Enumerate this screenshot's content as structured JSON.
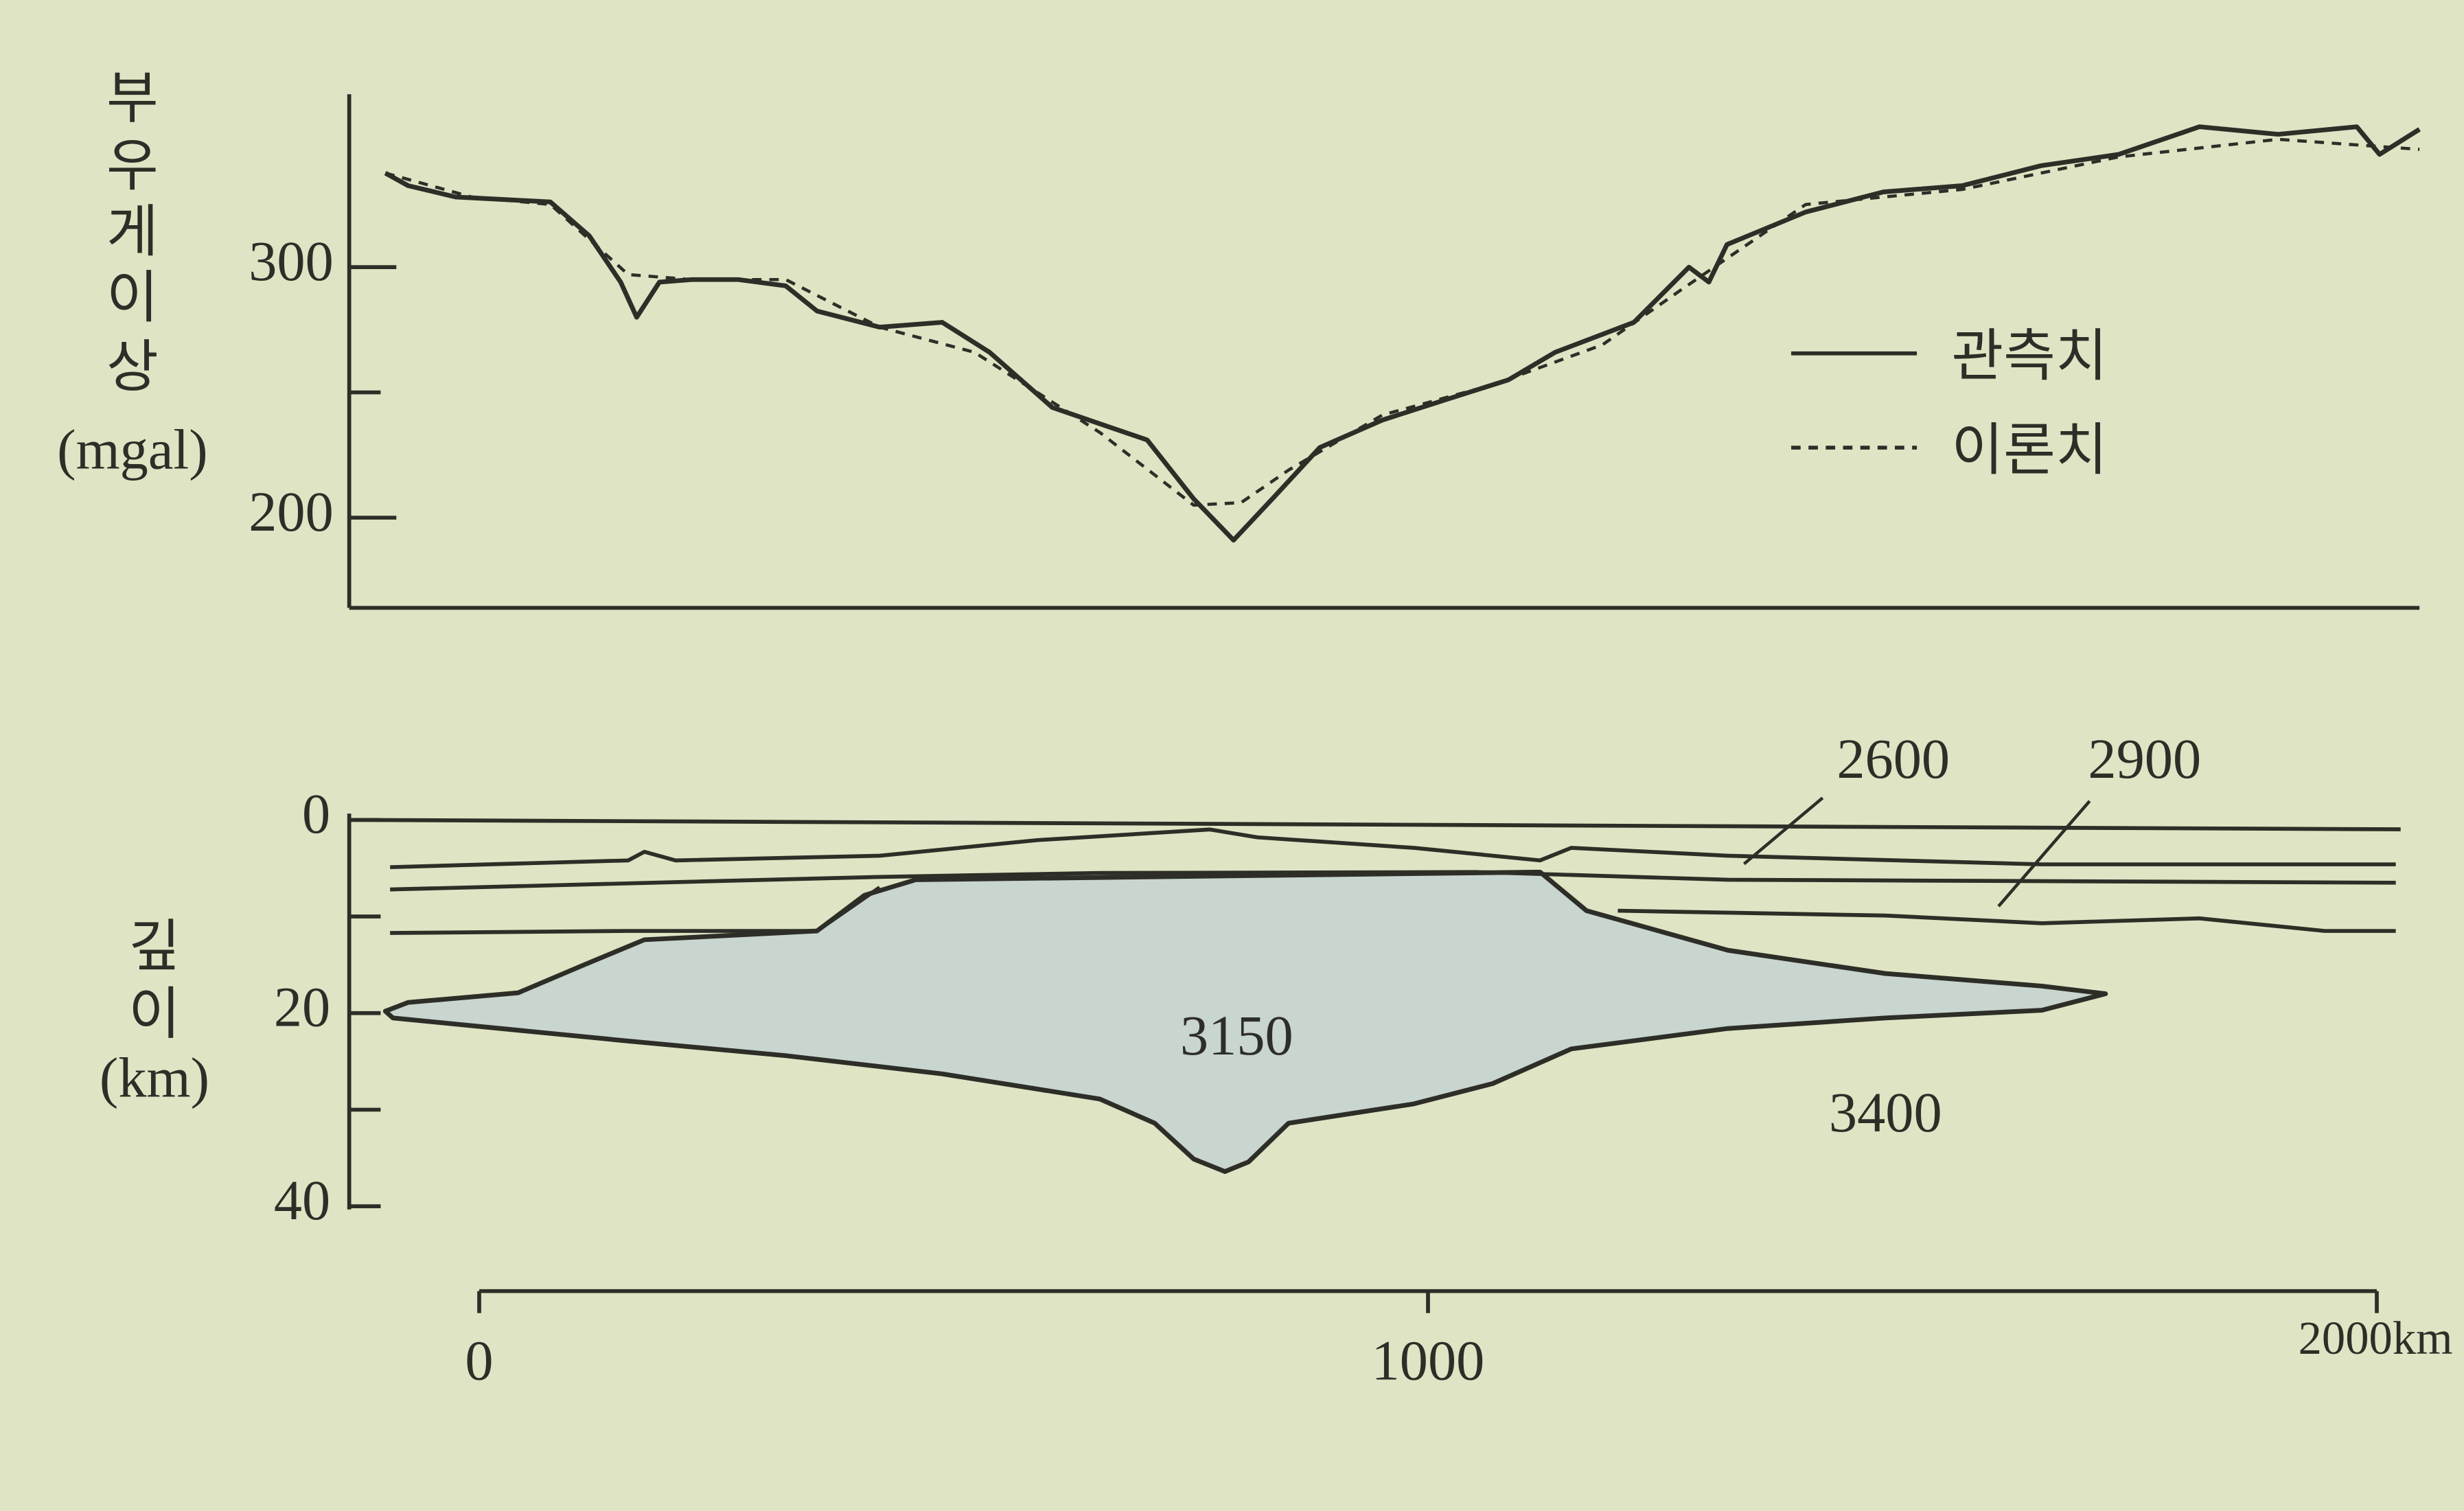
{
  "chart_data": [
    {
      "type": "line",
      "ylabel": [
        "부",
        "우",
        "게",
        "이",
        "상",
        "(mgal)"
      ],
      "xlim": [
        -137,
        2045
      ],
      "ylim": [
        164,
        369
      ],
      "yticks": [
        200,
        300
      ],
      "yminor_ticks": [
        250
      ],
      "legend": "right",
      "series": [
        {
          "name": "관측치",
          "color": "#2e2e28",
          "dash": "solid",
          "x": [
            -99,
            -75,
            -25,
            25,
            75,
            116,
            149,
            166,
            190,
            224,
            273,
            323,
            356,
            422,
            488,
            538,
            604,
            654,
            704,
            753,
            795,
            836,
            886,
            952,
            1018,
            1085,
            1134,
            1217,
            1275,
            1296,
            1315,
            1398,
            1480,
            1563,
            1646,
            1728,
            1813,
            1896,
            1979,
            2003,
            2045
          ],
          "values": [
            337.5,
            332.5,
            328,
            327,
            326,
            312.5,
            294,
            280,
            294,
            295,
            295,
            292.5,
            282.5,
            276,
            278,
            266,
            244,
            237.5,
            231,
            207.5,
            191,
            207.5,
            228,
            239,
            247,
            255,
            266,
            278,
            300,
            294,
            309,
            322,
            330,
            332.5,
            340.5,
            345,
            356,
            353,
            356,
            345,
            355
          ]
        },
        {
          "name": "이론치",
          "color": "#2e2e28",
          "dash": "dashed",
          "x": [
            -99,
            -8,
            75,
            157,
            224,
            323,
            422,
            522,
            654,
            753,
            803,
            853,
            952,
            1068,
            1184,
            1267,
            1398,
            1563,
            1728,
            1896,
            2045
          ],
          "values": [
            337.5,
            328,
            325,
            297,
            295,
            295,
            276,
            266,
            234,
            205,
            206,
            219,
            241,
            253,
            269,
            291,
            325,
            331,
            344,
            351,
            347
          ]
        }
      ]
    },
    {
      "type": "cross-section",
      "ylabel": [
        "깊",
        "이",
        "(km)"
      ],
      "xlim": [
        -137,
        2045
      ],
      "ylim": [
        0,
        40
      ],
      "y_inverted": true,
      "yticks": [
        0,
        20,
        40
      ],
      "yminor_ticks": [
        10,
        30
      ],
      "xticks": [
        0,
        1000,
        {
          "value": 2000,
          "label": "2000km"
        }
      ],
      "boundaries": [
        {
          "x": [
            -94,
            157,
            174,
            207,
            422,
            588,
            770,
            820,
            985,
            1118,
            1151,
            1316,
            1647,
            2020
          ],
          "values": [
            4.9,
            4.2,
            3.3,
            4.2,
            3.7,
            2.1,
            1.0,
            1.8,
            2.9,
            4.2,
            2.9,
            3.7,
            4.6,
            4.6
          ]
        },
        {
          "x": [
            -94,
            422,
            654,
            1051,
            1316,
            2020
          ],
          "values": [
            7.2,
            5.9,
            5.5,
            5.4,
            6.2,
            6.5
          ]
        },
        {
          "x": [
            -94,
            157,
            356,
            422
          ],
          "values": [
            11.7,
            11.5,
            11.5,
            7.0
          ]
        },
        {
          "x": [
            1200,
            1482,
            1647,
            1813,
            1945,
            2020
          ],
          "values": [
            9.4,
            9.9,
            10.7,
            10.2,
            11.5,
            11.5
          ]
        }
      ],
      "body": {
        "label": "3150",
        "color": "#c9d5cf",
        "x": [
          460,
          1118,
          1167,
          1316,
          1482,
          1647,
          1714,
          1647,
          1482,
          1316,
          1151,
          1068,
          985,
          853,
          811,
          786,
          753,
          712,
          654,
          488,
          323,
          157,
          -8,
          -91,
          -99,
          -75,
          41,
          108,
          174,
          356,
          406
        ],
        "values": [
          6.2,
          5.4,
          9.4,
          13.5,
          15.9,
          17.2,
          18.0,
          19.7,
          20.5,
          21.6,
          23.7,
          27.3,
          29.4,
          31.4,
          35.4,
          36.4,
          35.1,
          31.4,
          28.9,
          26.3,
          24.4,
          22.9,
          21.3,
          20.5,
          19.8,
          18.9,
          17.9,
          15.1,
          12.4,
          11.5,
          7.8
        ]
      },
      "annotations": [
        "2600",
        "2900",
        "3400"
      ]
    }
  ]
}
